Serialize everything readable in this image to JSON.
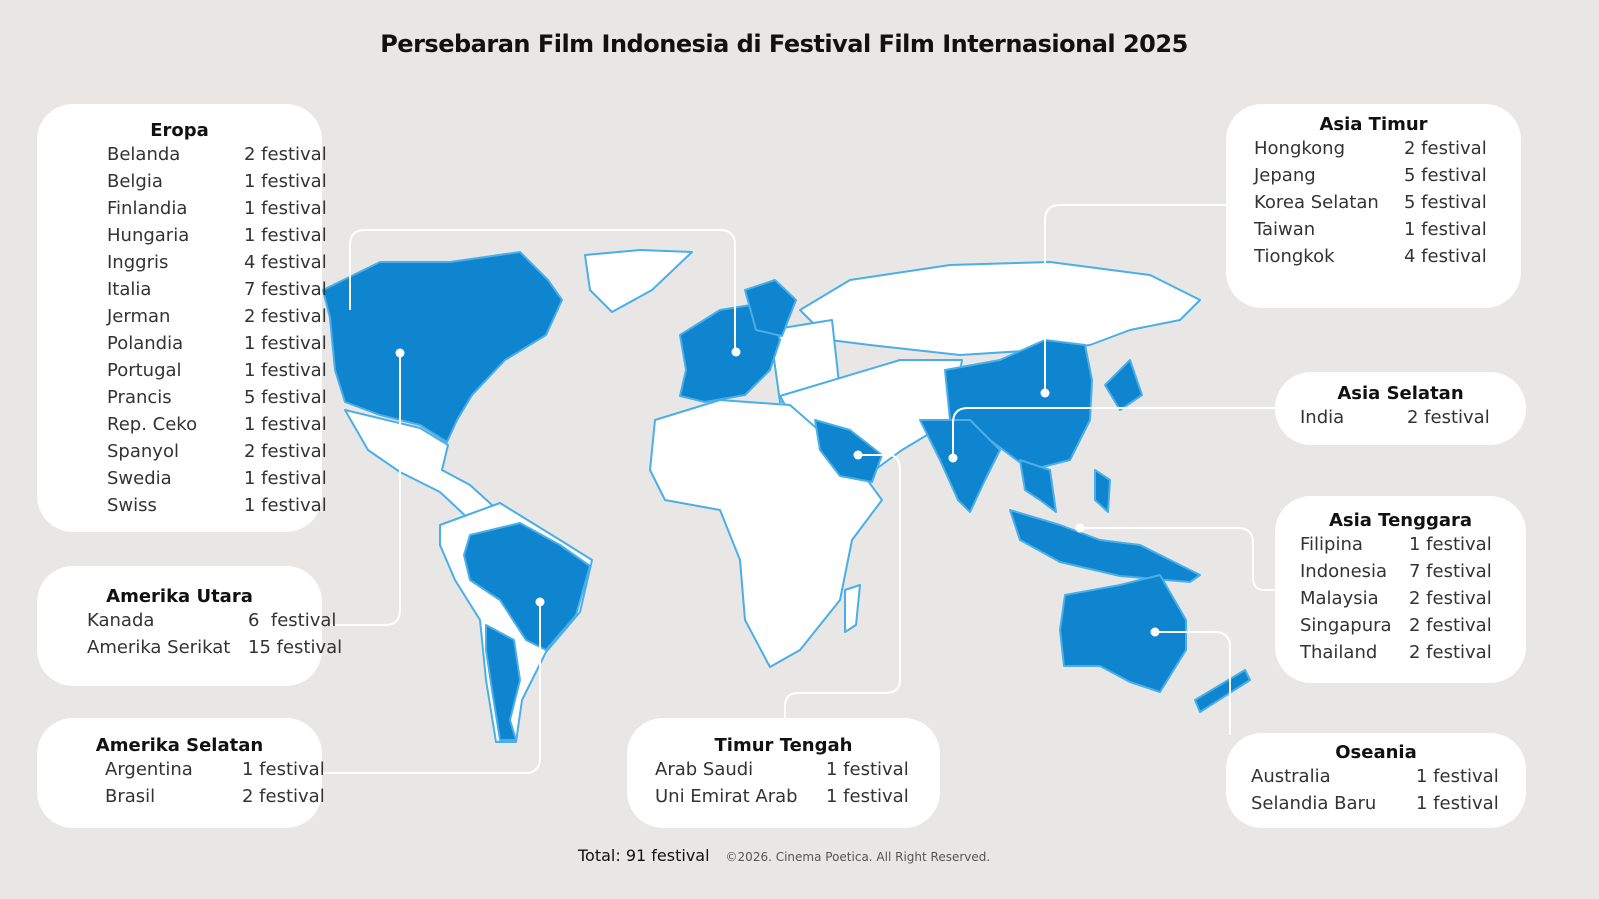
{
  "title": "Persebaran Film Indonesia di Festival Film Internasional 2025",
  "colors": {
    "background": "#e8e7e6",
    "highlight": "#0f85cf",
    "outline": "#4aaee8",
    "land": "#ffffff"
  },
  "regions": {
    "eropa": {
      "name": "Eropa",
      "items": [
        {
          "country": "Belanda",
          "count": "2 festival"
        },
        {
          "country": "Belgia",
          "count": "1 festival"
        },
        {
          "country": "Finlandia",
          "count": "1 festival"
        },
        {
          "country": "Hungaria",
          "count": "1 festival"
        },
        {
          "country": "Inggris",
          "count": "4 festival"
        },
        {
          "country": "Italia",
          "count": "7 festival"
        },
        {
          "country": "Jerman",
          "count": "2 festival"
        },
        {
          "country": "Polandia",
          "count": "1 festival"
        },
        {
          "country": "Portugal",
          "count": "1 festival"
        },
        {
          "country": "Prancis",
          "count": "5 festival"
        },
        {
          "country": "Rep. Ceko",
          "count": "1 festival"
        },
        {
          "country": "Spanyol",
          "count": "2 festival"
        },
        {
          "country": "Swedia",
          "count": "1 festival"
        },
        {
          "country": "Swiss",
          "count": "1 festival"
        }
      ]
    },
    "amerika_utara": {
      "name": "Amerika Utara",
      "items": [
        {
          "country": "Kanada",
          "count": "6  festival"
        },
        {
          "country": "Amerika Serikat",
          "count": "15 festival"
        }
      ]
    },
    "amerika_selatan": {
      "name": "Amerika Selatan",
      "items": [
        {
          "country": "Argentina",
          "count": "1 festival"
        },
        {
          "country": "Brasil",
          "count": "2 festival"
        }
      ]
    },
    "timur_tengah": {
      "name": "Timur Tengah",
      "items": [
        {
          "country": "Arab Saudi",
          "count": "1 festival"
        },
        {
          "country": "Uni Emirat Arab",
          "count": "1 festival"
        }
      ]
    },
    "asia_timur": {
      "name": "Asia Timur",
      "items": [
        {
          "country": "Hongkong",
          "count": "2 festival"
        },
        {
          "country": "Jepang",
          "count": "5 festival"
        },
        {
          "country": "Korea Selatan",
          "count": "5 festival"
        },
        {
          "country": "Taiwan",
          "count": "1 festival"
        },
        {
          "country": "Tiongkok",
          "count": "4 festival"
        }
      ]
    },
    "asia_selatan": {
      "name": "Asia Selatan",
      "items": [
        {
          "country": "India",
          "count": "2 festival"
        }
      ]
    },
    "asia_tenggara": {
      "name": "Asia Tenggara",
      "items": [
        {
          "country": "Filipina",
          "count": "1 festival"
        },
        {
          "country": "Indonesia",
          "count": "7 festival"
        },
        {
          "country": "Malaysia",
          "count": "2 festival"
        },
        {
          "country": "Singapura",
          "count": "2 festival"
        },
        {
          "country": "Thailand",
          "count": "2 festival"
        }
      ]
    },
    "oseania": {
      "name": "Oseania",
      "items": [
        {
          "country": "Australia",
          "count": "1 festival"
        },
        {
          "country": "Selandia Baru",
          "count": "1 festival"
        }
      ]
    }
  },
  "footer": {
    "total": "Total: 91 festival",
    "copyright": "©2026. Cinema Poetica. All Right Reserved."
  }
}
